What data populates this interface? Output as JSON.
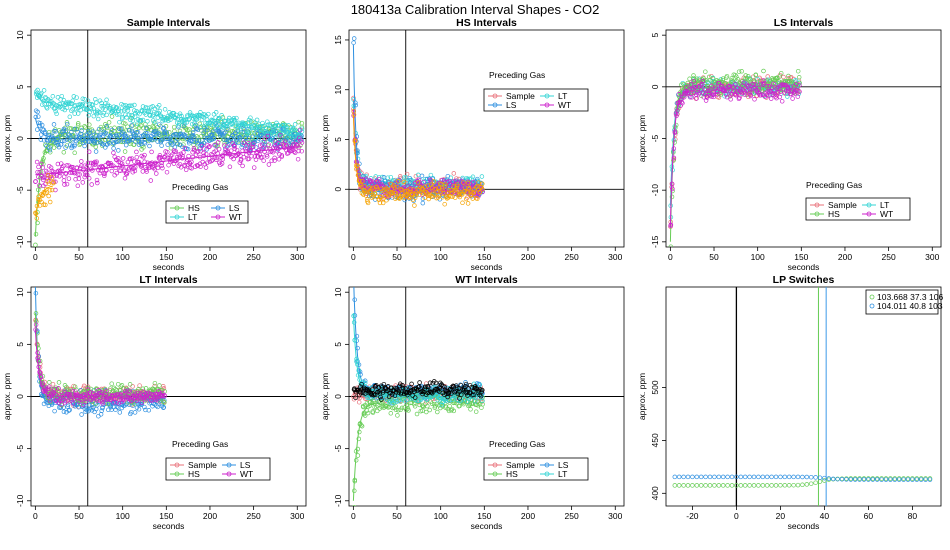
{
  "figure_title": "180413a   Calibration Interval Shapes - CO2",
  "colors": {
    "Sample": "#e9707a",
    "HS": "#66cc55",
    "LS": "#2d8fe0",
    "LT": "#33d4d4",
    "WT": "#cc22cc",
    "orange": "#f5a300",
    "black": "#000000",
    "vline_green": "#66cc55",
    "vline_blue": "#3d9ae8"
  },
  "chart_data": [
    {
      "type": "scatter",
      "title": "Sample Intervals",
      "xlabel": "seconds",
      "ylabel": "approx. ppm",
      "xlim": [
        -5,
        310
      ],
      "ylim": [
        -10.5,
        10.5
      ],
      "xticks": [
        0,
        50,
        100,
        150,
        200,
        250,
        300
      ],
      "yticks": [
        -10,
        -5,
        0,
        5,
        10
      ],
      "vline": 60,
      "hline": 0,
      "legend": {
        "title": "Preceding Gas",
        "entries": [
          "HS",
          "LS",
          "LT",
          "WT"
        ],
        "placement": "bottom-center"
      },
      "series": [
        {
          "name": "HS",
          "xmax": 305,
          "start": -9.5,
          "tau": 6,
          "plateau": 0.35,
          "noise": 0.9
        },
        {
          "name": "LS",
          "xmax": 305,
          "start": 2.0,
          "tau": 5,
          "plateau": 0.1,
          "noise": 0.8
        },
        {
          "name": "LT",
          "xmax": 305,
          "start": 4.5,
          "tau": 4,
          "plateau": 3.6,
          "drift_to": 0.6,
          "noise": 0.6
        },
        {
          "name": "WT",
          "xmax": 305,
          "start": -3.5,
          "tau": 90,
          "plateau": -3.0,
          "drift_to": -0.7,
          "noise": 0.9
        },
        {
          "name": "orange",
          "xmax": 20,
          "start": -7.5,
          "tau": 6,
          "plateau": -4.5,
          "noise": 0.9
        }
      ]
    },
    {
      "type": "scatter",
      "title": "HS Intervals",
      "xlabel": "seconds",
      "ylabel": "approx. ppm",
      "xlim": [
        -5,
        310
      ],
      "ylim": [
        -5.8,
        16
      ],
      "xticks": [
        0,
        50,
        100,
        150,
        200,
        250,
        300
      ],
      "yticks": [
        0,
        5,
        10,
        15
      ],
      "vline": 60,
      "hline": 0,
      "legend": {
        "title": "Preceding Gas",
        "entries": [
          "Sample",
          "LT",
          "LS",
          "WT"
        ],
        "placement": "top-center"
      },
      "series": [
        {
          "name": "Sample",
          "xmax": 148,
          "start": 9.0,
          "tau": 3,
          "plateau": 0.2,
          "noise": 0.7
        },
        {
          "name": "LT",
          "xmax": 148,
          "start": 8.5,
          "tau": 3,
          "plateau": 0.5,
          "noise": 0.6
        },
        {
          "name": "LS",
          "xmax": 148,
          "start": 14.5,
          "tau": 3,
          "plateau": 0.0,
          "noise": 0.8
        },
        {
          "name": "WT",
          "xmax": 148,
          "start": 8.0,
          "tau": 3,
          "plateau": 0.1,
          "noise": 0.6
        },
        {
          "name": "orange",
          "xmax": 148,
          "start": 7.5,
          "tau": 3,
          "plateau": -0.3,
          "noise": 0.7
        }
      ]
    },
    {
      "type": "scatter",
      "title": "LS Intervals",
      "xlabel": "seconds",
      "ylabel": "approx. ppm",
      "xlim": [
        -5,
        310
      ],
      "ylim": [
        -15.5,
        5.5
      ],
      "xticks": [
        0,
        50,
        100,
        150,
        200,
        250,
        300
      ],
      "yticks": [
        -15,
        -10,
        -5,
        0,
        5
      ],
      "vline": null,
      "hline": 0,
      "legend": {
        "title": "Preceding Gas",
        "entries": [
          "Sample",
          "LT",
          "HS",
          "WT"
        ],
        "placement": "bottom-right"
      },
      "series": [
        {
          "name": "Sample",
          "xmax": 148,
          "start": -13.5,
          "tau": 4,
          "plateau": 0.0,
          "noise": 0.7
        },
        {
          "name": "LT",
          "xmax": 148,
          "start": -11.5,
          "tau": 4,
          "plateau": -0.1,
          "noise": 0.6
        },
        {
          "name": "HS",
          "xmax": 148,
          "start": -15.0,
          "tau": 4,
          "plateau": 0.3,
          "noise": 0.8
        },
        {
          "name": "WT",
          "xmax": 148,
          "start": -13.5,
          "tau": 4,
          "plateau": -0.3,
          "noise": 0.6
        }
      ]
    },
    {
      "type": "scatter",
      "title": "LT Intervals",
      "xlabel": "seconds",
      "ylabel": "approx. ppm",
      "xlim": [
        -5,
        310
      ],
      "ylim": [
        -10.5,
        10.5
      ],
      "xticks": [
        0,
        50,
        100,
        150,
        200,
        250,
        300
      ],
      "yticks": [
        -10,
        -5,
        0,
        5,
        10
      ],
      "vline": 60,
      "hline": 0,
      "legend": {
        "title": "Preceding Gas",
        "entries": [
          "Sample",
          "LS",
          "HS",
          "WT"
        ],
        "placement": "bottom-center"
      },
      "series": [
        {
          "name": "Sample",
          "xmax": 148,
          "start": 7.5,
          "tau": 4,
          "plateau": 0.1,
          "noise": 0.6
        },
        {
          "name": "LS",
          "xmax": 148,
          "start": 10.5,
          "tau": 3,
          "plateau": -0.6,
          "noise": 0.7
        },
        {
          "name": "HS",
          "xmax": 148,
          "start": 8.0,
          "tau": 4,
          "plateau": 0.2,
          "noise": 0.7
        },
        {
          "name": "WT",
          "xmax": 148,
          "start": 6.5,
          "tau": 4,
          "plateau": 0.0,
          "noise": 0.5
        }
      ]
    },
    {
      "type": "scatter",
      "title": "WT Intervals",
      "xlabel": "seconds",
      "ylabel": "approx. ppm",
      "xlim": [
        -5,
        310
      ],
      "ylim": [
        -10.5,
        10.5
      ],
      "xticks": [
        0,
        50,
        100,
        150,
        200,
        250,
        300
      ],
      "yticks": [
        -10,
        -5,
        0,
        5,
        10
      ],
      "vline": 60,
      "hline": 0,
      "legend": {
        "title": "Preceding Gas",
        "entries": [
          "Sample",
          "LS",
          "HS",
          "LT"
        ],
        "placement": "bottom-center"
      },
      "series": [
        {
          "name": "Sample",
          "xmax": 148,
          "start": 0.3,
          "tau": 3,
          "plateau": 0.3,
          "noise": 0.5
        },
        {
          "name": "LS",
          "xmax": 148,
          "start": 12.0,
          "tau": 4,
          "plateau": 0.4,
          "noise": 0.6
        },
        {
          "name": "HS",
          "xmax": 148,
          "start": -10.0,
          "tau": 5,
          "plateau": -0.6,
          "noise": 0.7
        },
        {
          "name": "LT",
          "xmax": 148,
          "start": 8.0,
          "tau": 4,
          "plateau": 0.2,
          "noise": 0.6
        },
        {
          "name": "black",
          "xmax": 148,
          "start": 0.4,
          "tau": 2,
          "plateau": 0.6,
          "noise": 0.5
        }
      ]
    },
    {
      "type": "line",
      "title": "LP Switches",
      "xlabel": "seconds",
      "ylabel": "approx. ppm",
      "xlim": [
        -32,
        93
      ],
      "ylim": [
        388,
        595
      ],
      "xticks": [
        -20,
        0,
        20,
        40,
        60,
        80
      ],
      "yticks": [
        400,
        450,
        500
      ],
      "vlines_black": [
        0
      ],
      "vlines_green": [
        37.3
      ],
      "vlines_blue": [
        40.8
      ],
      "legend": {
        "entries": [
          "103.668 37.3 106",
          "104.011 40.8 103"
        ],
        "placement": "top-right"
      },
      "series": [
        {
          "name": "103.668 37.3 106",
          "color_key": "HS",
          "x_from": -28,
          "x_to": 89,
          "step": 2,
          "y_before": 407.5,
          "y_after": 414,
          "switch": 37.3
        },
        {
          "name": "104.011 40.8 103",
          "color_key": "LS",
          "x_from": -28,
          "x_to": 89,
          "step": 2,
          "y_before": 415.5,
          "y_after": 413,
          "switch": 40.8
        }
      ]
    }
  ]
}
